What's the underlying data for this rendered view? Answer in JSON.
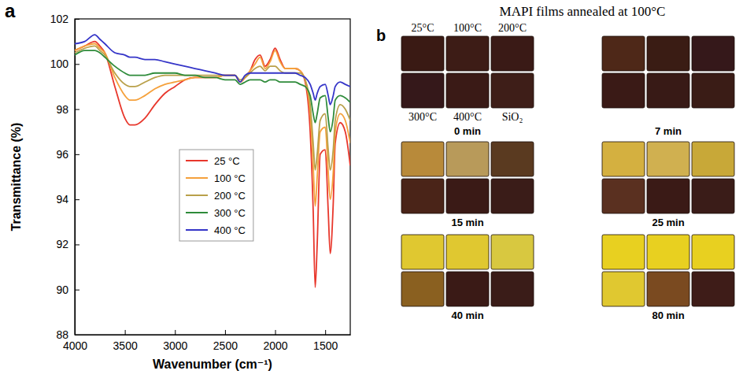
{
  "chart_data": [
    {
      "type": "line",
      "label": "a",
      "x_label": "Wavenumber (cm⁻¹)",
      "y_label": "Transmittance (%)",
      "x": [
        4000,
        3900,
        3800,
        3750,
        3700,
        3600,
        3500,
        3450,
        3400,
        3300,
        3200,
        3100,
        3000,
        2900,
        2800,
        2700,
        2600,
        2500,
        2400,
        2350,
        2300,
        2250,
        2200,
        2150,
        2100,
        2050,
        2000,
        1950,
        1900,
        1850,
        1800,
        1750,
        1700,
        1650,
        1620,
        1600,
        1580,
        1550,
        1500,
        1470,
        1450,
        1420,
        1400,
        1350,
        1300,
        1250
      ],
      "series": [
        {
          "name": "25 °C",
          "color": "#e8372c",
          "values": [
            100.6,
            100.8,
            101.0,
            100.8,
            100.5,
            99.0,
            97.6,
            97.3,
            97.3,
            97.6,
            98.2,
            98.7,
            99.0,
            99.3,
            99.4,
            99.4,
            99.4,
            99.5,
            99.5,
            99.2,
            99.4,
            99.7,
            100.2,
            100.4,
            99.9,
            100.2,
            100.7,
            100.2,
            99.8,
            99.8,
            99.8,
            99.7,
            99.2,
            97.0,
            93.5,
            90.1,
            92.0,
            96.0,
            96.2,
            93.5,
            91.6,
            93.8,
            96.5,
            97.4,
            97.0,
            95.5
          ]
        },
        {
          "name": "100 °C",
          "color": "#f5a13c",
          "values": [
            100.6,
            100.8,
            100.9,
            100.7,
            100.5,
            99.4,
            98.6,
            98.4,
            98.4,
            98.6,
            98.9,
            99.1,
            99.2,
            99.3,
            99.4,
            99.4,
            99.4,
            99.5,
            99.5,
            99.2,
            99.4,
            99.7,
            100.0,
            100.3,
            99.8,
            100.1,
            100.6,
            100.1,
            99.8,
            99.8,
            99.8,
            99.7,
            99.3,
            97.8,
            95.5,
            93.7,
            95.0,
            97.0,
            97.2,
            95.2,
            94.0,
            95.2,
            97.0,
            97.8,
            97.5,
            96.5
          ]
        },
        {
          "name": "200 °C",
          "color": "#b9a04a",
          "values": [
            100.5,
            100.7,
            100.8,
            100.6,
            100.4,
            99.6,
            99.1,
            99.0,
            99.0,
            99.2,
            99.4,
            99.5,
            99.5,
            99.5,
            99.5,
            99.5,
            99.5,
            99.5,
            99.5,
            99.3,
            99.4,
            99.6,
            99.8,
            99.9,
            99.7,
            99.9,
            99.9,
            99.7,
            99.6,
            99.6,
            99.6,
            99.6,
            99.3,
            98.2,
            96.5,
            95.3,
            96.0,
            97.5,
            97.8,
            96.2,
            95.3,
            96.2,
            97.5,
            98.2,
            98.0,
            97.5
          ]
        },
        {
          "name": "300 °C",
          "color": "#2e8b3a",
          "values": [
            100.4,
            100.6,
            100.6,
            100.5,
            100.3,
            99.9,
            99.6,
            99.5,
            99.5,
            99.5,
            99.6,
            99.6,
            99.6,
            99.5,
            99.5,
            99.4,
            99.4,
            99.3,
            99.3,
            99.1,
            99.2,
            99.3,
            99.3,
            99.3,
            99.2,
            99.3,
            99.3,
            99.2,
            99.2,
            99.2,
            99.2,
            99.1,
            99.0,
            98.6,
            97.8,
            97.4,
            97.8,
            98.5,
            98.6,
            97.6,
            97.0,
            97.6,
            98.4,
            98.6,
            98.5,
            98.3
          ]
        },
        {
          "name": "400 °C",
          "color": "#3535c8",
          "values": [
            100.9,
            101.0,
            101.3,
            101.1,
            100.9,
            100.5,
            100.4,
            100.3,
            100.3,
            100.2,
            100.2,
            100.1,
            100.0,
            99.9,
            99.8,
            99.7,
            99.6,
            99.5,
            99.5,
            99.2,
            99.5,
            99.6,
            99.6,
            99.6,
            99.6,
            99.6,
            99.6,
            99.6,
            99.6,
            99.6,
            99.6,
            99.5,
            99.4,
            99.1,
            98.7,
            98.4,
            98.7,
            99.0,
            99.1,
            98.6,
            98.2,
            98.6,
            99.0,
            99.2,
            99.1,
            99.0
          ]
        }
      ],
      "xlim": [
        4000,
        1250
      ],
      "ylim": [
        88,
        102
      ],
      "xticks": [
        4000,
        3500,
        3000,
        2500,
        2000,
        1500
      ],
      "yticks": [
        88,
        90,
        92,
        94,
        96,
        98,
        100,
        102
      ],
      "legend": "center"
    },
    {
      "type": "image_grid",
      "label": "b",
      "title": "MAPI films annealed at 100°C",
      "labels": [
        "25°C",
        "100°C",
        "200°C",
        "300°C",
        "400°C",
        "SiO₂"
      ],
      "panels": [
        {
          "label": "0 min",
          "colors": [
            "#3a1a14",
            "#3d1c16",
            "#3a1a16",
            "#35181a",
            "#3a1a16",
            "#3e1e18"
          ]
        },
        {
          "label": "7 min",
          "colors": [
            "#4e2818",
            "#3a1c14",
            "#35181a",
            "#3a1a16",
            "#381a16",
            "#3a1c16"
          ]
        },
        {
          "label": "15 min",
          "colors": [
            "#b88a3a",
            "#b89a5a",
            "#5a3a20",
            "#4a2418",
            "#3a1a16",
            "#3a1c18"
          ]
        },
        {
          "label": "25 min",
          "colors": [
            "#d4b040",
            "#d0b050",
            "#c8a838",
            "#5a3020",
            "#3a1a16",
            "#3a1c18"
          ]
        },
        {
          "label": "40 min",
          "colors": [
            "#e0c830",
            "#e0c830",
            "#d8c840",
            "#8a6020",
            "#3a1a16",
            "#3a1c18"
          ]
        },
        {
          "label": "80 min",
          "colors": [
            "#e8d020",
            "#e8d020",
            "#e8d020",
            "#e0c830",
            "#7a4a20",
            "#3e1c18"
          ]
        }
      ]
    }
  ]
}
